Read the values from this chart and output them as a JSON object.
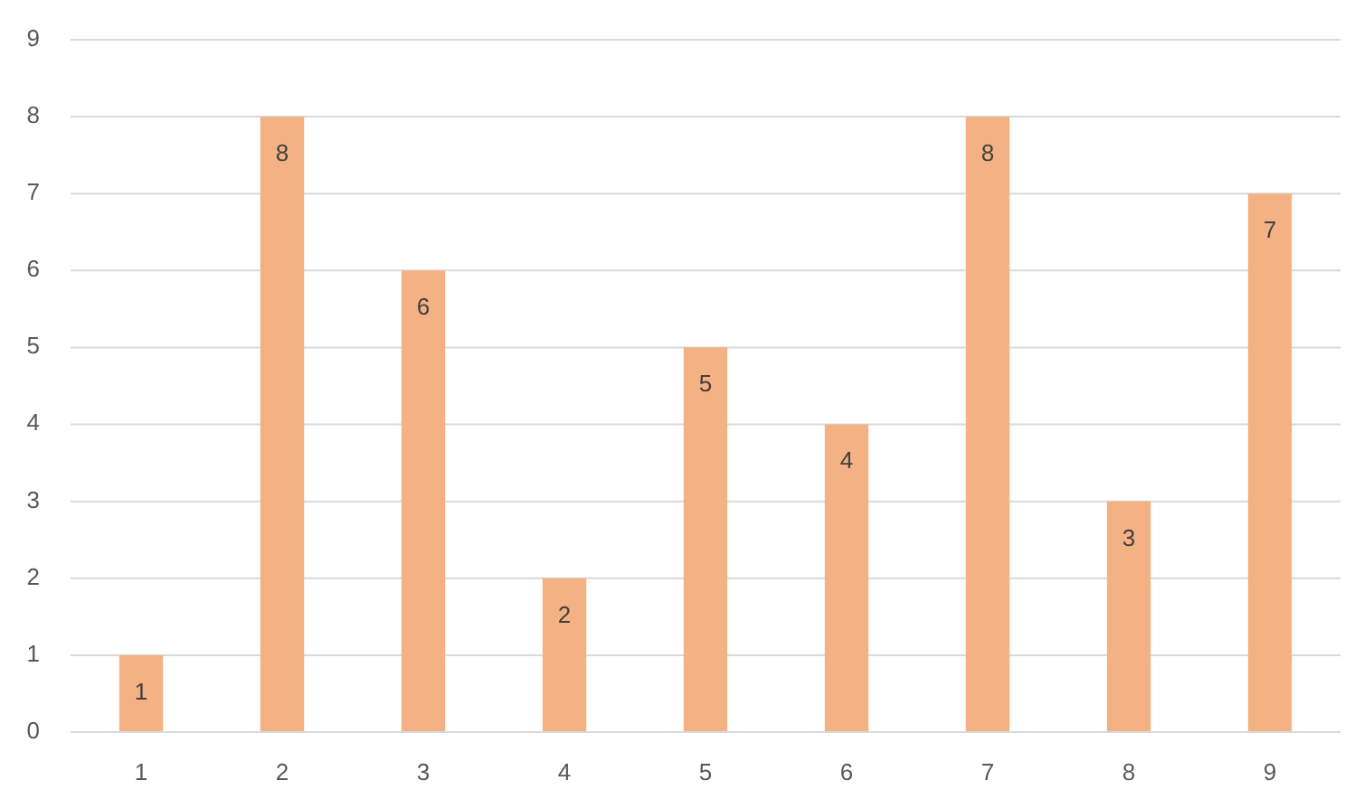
{
  "chart_data": {
    "type": "bar",
    "categories": [
      "1",
      "2",
      "3",
      "4",
      "5",
      "6",
      "7",
      "8",
      "9"
    ],
    "values": [
      1,
      8,
      6,
      2,
      5,
      4,
      8,
      3,
      7
    ],
    "color": "#f4b183",
    "ylim": [
      0,
      9
    ],
    "yticks": [
      0,
      1,
      2,
      3,
      4,
      5,
      6,
      7,
      8,
      9
    ],
    "grid": "y",
    "data_labels": true
  }
}
